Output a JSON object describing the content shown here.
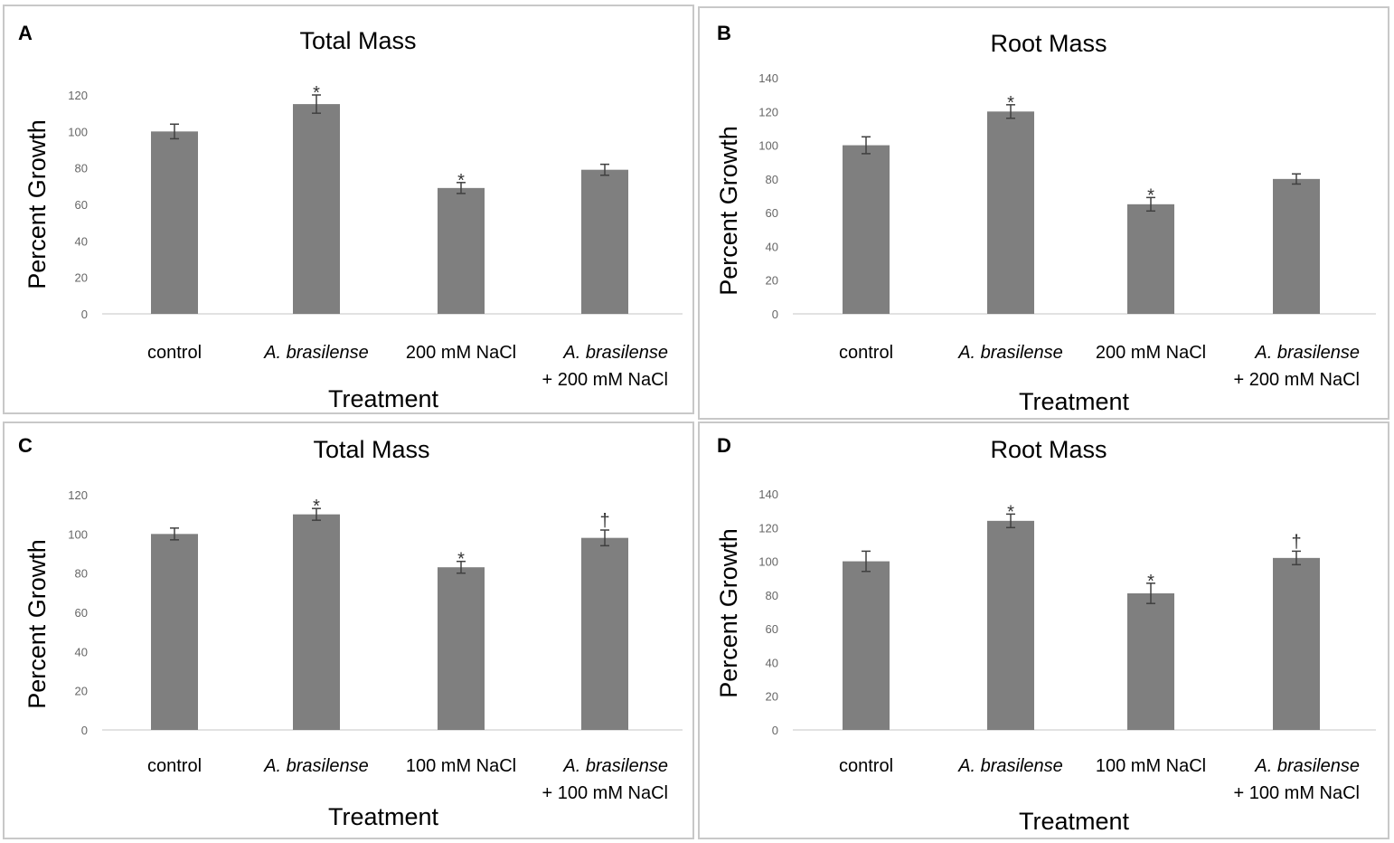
{
  "colors": {
    "bar": "#7f7f7f",
    "error_bar": "#404040",
    "frame": "#c8c8c8",
    "axis": "#d9d9d9"
  },
  "chart_data": [
    {
      "type": "bar",
      "panel": "A",
      "title": "Total Mass",
      "xlabel": "Treatment",
      "ylabel": "Percent Growth",
      "ylim": [
        0,
        120
      ],
      "yticks": [
        0,
        20,
        40,
        60,
        80,
        100,
        120
      ],
      "categories": [
        {
          "lines": [
            "control"
          ],
          "italic_first": false
        },
        {
          "lines": [
            "A. brasilense"
          ],
          "italic_first": true
        },
        {
          "lines": [
            "200 mM NaCl"
          ],
          "italic_first": false
        },
        {
          "lines": [
            "A. brasilense",
            "+ 200 mM NaCl"
          ],
          "italic_first": true
        }
      ],
      "values": [
        100,
        115,
        69,
        79
      ],
      "errors": [
        4,
        5,
        3,
        3
      ],
      "annotations": [
        "",
        "*",
        "*",
        ""
      ]
    },
    {
      "type": "bar",
      "panel": "B",
      "title": "Root Mass",
      "xlabel": "Treatment",
      "ylabel": "Percent Growth",
      "ylim": [
        0,
        140
      ],
      "yticks": [
        0,
        20,
        40,
        60,
        80,
        100,
        120,
        140
      ],
      "categories": [
        {
          "lines": [
            "control"
          ],
          "italic_first": false
        },
        {
          "lines": [
            "A. brasilense"
          ],
          "italic_first": true
        },
        {
          "lines": [
            "200 mM NaCl"
          ],
          "italic_first": false
        },
        {
          "lines": [
            "A. brasilense",
            "+ 200 mM NaCl"
          ],
          "italic_first": true
        }
      ],
      "values": [
        100,
        120,
        65,
        80
      ],
      "errors": [
        5,
        4,
        4,
        3
      ],
      "annotations": [
        "",
        "*",
        "*",
        ""
      ]
    },
    {
      "type": "bar",
      "panel": "C",
      "title": "Total Mass",
      "xlabel": "Treatment",
      "ylabel": "Percent Growth",
      "ylim": [
        0,
        120
      ],
      "yticks": [
        0,
        20,
        40,
        60,
        80,
        100,
        120
      ],
      "categories": [
        {
          "lines": [
            "control"
          ],
          "italic_first": false
        },
        {
          "lines": [
            "A. brasilense"
          ],
          "italic_first": true
        },
        {
          "lines": [
            "100 mM NaCl"
          ],
          "italic_first": false
        },
        {
          "lines": [
            "A. brasilense",
            "+ 100 mM NaCl"
          ],
          "italic_first": true
        }
      ],
      "values": [
        100,
        110,
        83,
        98
      ],
      "errors": [
        3,
        3,
        3,
        4
      ],
      "annotations": [
        "",
        "*",
        "*",
        "†"
      ]
    },
    {
      "type": "bar",
      "panel": "D",
      "title": "Root Mass",
      "xlabel": "Treatment",
      "ylabel": "Percent Growth",
      "ylim": [
        0,
        140
      ],
      "yticks": [
        0,
        20,
        40,
        60,
        80,
        100,
        120,
        140
      ],
      "categories": [
        {
          "lines": [
            "control"
          ],
          "italic_first": false
        },
        {
          "lines": [
            "A. brasilense"
          ],
          "italic_first": true
        },
        {
          "lines": [
            "100 mM NaCl"
          ],
          "italic_first": false
        },
        {
          "lines": [
            "A. brasilense",
            "+ 100 mM NaCl"
          ],
          "italic_first": true
        }
      ],
      "values": [
        100,
        124,
        81,
        102
      ],
      "errors": [
        6,
        4,
        6,
        4
      ],
      "annotations": [
        "",
        "*",
        "*",
        "†"
      ]
    }
  ]
}
